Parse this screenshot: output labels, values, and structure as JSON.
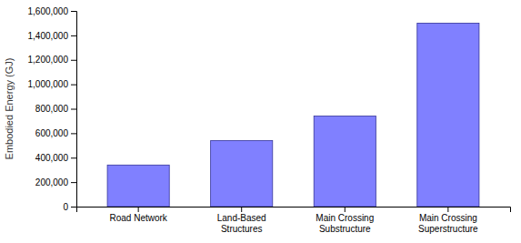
{
  "chart_data": {
    "type": "bar",
    "ylabel": "Embodied Energy (GJ)",
    "categories": [
      "Road Network",
      "Land-Based\nStructures",
      "Main Crossing\nSubstructure",
      "Main Crossing\nSuperstructure"
    ],
    "values": [
      340000,
      540000,
      740000,
      1500000
    ],
    "color": "#8080ff",
    "ylim": [
      0,
      1600000
    ],
    "yticks": [
      0,
      {
        "value": 200000,
        "label": "200,000"
      },
      {
        "value": 400000,
        "label": "400,000"
      },
      {
        "value": 600000,
        "label": "600,000"
      },
      {
        "value": 800000,
        "label": "800,000"
      },
      {
        "value": 1000000,
        "label": "1,000,000"
      },
      {
        "value": 1200000,
        "label": "1,200,000"
      },
      {
        "value": 1400000,
        "label": "1,400,000"
      },
      {
        "value": 1600000,
        "label": "1,600,000"
      }
    ],
    "grid": false
  }
}
